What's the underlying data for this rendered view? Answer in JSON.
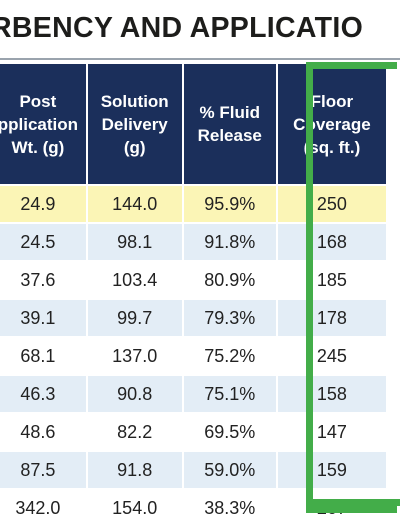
{
  "title": "RBENCY AND APPLICATIO",
  "headers": [
    [
      "Post",
      "pplication",
      "Wt. (g)"
    ],
    [
      "Solution",
      "Delivery",
      "(g)"
    ],
    [
      "% Fluid",
      "Release"
    ],
    [
      "Floor",
      "Coverage",
      "(sq. ft.)"
    ]
  ],
  "rows": [
    [
      "24.9",
      "144.0",
      "95.9%",
      "250"
    ],
    [
      "24.5",
      "98.1",
      "91.8%",
      "168"
    ],
    [
      "37.6",
      "103.4",
      "80.9%",
      "185"
    ],
    [
      "39.1",
      "99.7",
      "79.3%",
      "178"
    ],
    [
      "68.1",
      "137.0",
      "75.2%",
      "245"
    ],
    [
      "46.3",
      "90.8",
      "75.1%",
      "158"
    ],
    [
      "48.6",
      "82.2",
      "69.5%",
      "147"
    ],
    [
      "87.5",
      "91.8",
      "59.0%",
      "159"
    ],
    [
      "342.0",
      "154.0",
      "38.3%",
      "267"
    ]
  ],
  "colors": {
    "header_bg": "#1b2f5b",
    "highlight_row": "#fbf5b6",
    "alt_row": "#e3edf6",
    "frame": "#43ad49"
  }
}
